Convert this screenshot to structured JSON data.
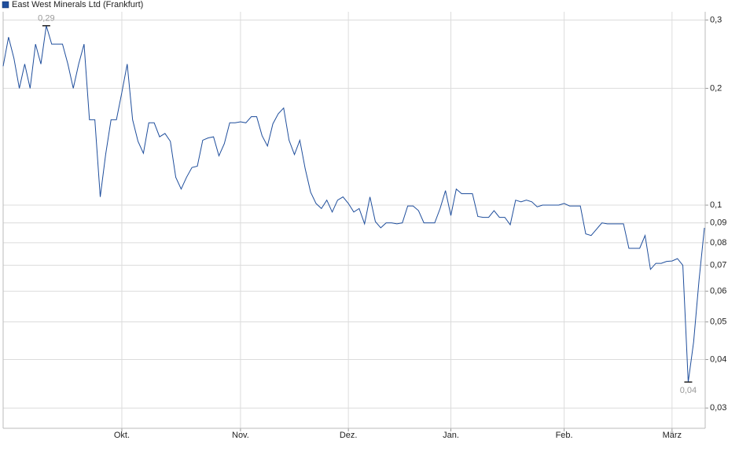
{
  "chart_data": {
    "type": "line",
    "log_scale": true,
    "grid": true,
    "legend": "top-left",
    "ylim": [
      0.0266,
      0.315
    ],
    "yticks": [
      {
        "value": 0.3,
        "label": "0,3"
      },
      {
        "value": 0.2,
        "label": "0,2"
      },
      {
        "value": 0.1,
        "label": "0,1"
      },
      {
        "value": 0.09,
        "label": "0,09"
      },
      {
        "value": 0.08,
        "label": "0,08"
      },
      {
        "value": 0.07,
        "label": "0,07"
      },
      {
        "value": 0.06,
        "label": "0,06"
      },
      {
        "value": 0.05,
        "label": "0,05"
      },
      {
        "value": 0.04,
        "label": "0,04"
      },
      {
        "value": 0.03,
        "label": "0,03"
      }
    ],
    "xlim": [
      0,
      130
    ],
    "xticks": [
      {
        "value": 22,
        "label": "Okt."
      },
      {
        "value": 44,
        "label": "Nov."
      },
      {
        "value": 64,
        "label": "Dez."
      },
      {
        "value": 83,
        "label": "Jan."
      },
      {
        "value": 104,
        "label": "Feb."
      },
      {
        "value": 124,
        "label": "März"
      }
    ],
    "series": [
      {
        "name": "East West Minerals Ltd (Frankfurt)",
        "color": "#1f4e9c",
        "values": [
          0.228,
          0.271,
          0.239,
          0.2,
          0.231,
          0.2,
          0.26,
          0.231,
          0.29,
          0.26,
          0.26,
          0.26,
          0.231,
          0.2,
          0.231,
          0.26,
          0.166,
          0.166,
          0.105,
          0.135,
          0.166,
          0.166,
          0.195,
          0.231,
          0.166,
          0.146,
          0.136,
          0.163,
          0.163,
          0.15,
          0.153,
          0.146,
          0.118,
          0.11,
          0.118,
          0.125,
          0.126,
          0.147,
          0.149,
          0.15,
          0.134,
          0.144,
          0.163,
          0.163,
          0.164,
          0.163,
          0.169,
          0.169,
          0.151,
          0.142,
          0.162,
          0.172,
          0.178,
          0.147,
          0.135,
          0.147,
          0.124,
          0.108,
          0.101,
          0.098,
          0.103,
          0.096,
          0.103,
          0.105,
          0.101,
          0.096,
          0.098,
          0.0895,
          0.105,
          0.0907,
          0.0874,
          0.09,
          0.09,
          0.0895,
          0.09,
          0.0995,
          0.0995,
          0.0968,
          0.09,
          0.09,
          0.09,
          0.098,
          0.109,
          0.094,
          0.11,
          0.107,
          0.107,
          0.107,
          0.0935,
          0.093,
          0.093,
          0.0968,
          0.093,
          0.093,
          0.089,
          0.103,
          0.102,
          0.103,
          0.102,
          0.099,
          0.1,
          0.1,
          0.1,
          0.1,
          0.101,
          0.0995,
          0.0995,
          0.0995,
          0.0843,
          0.0835,
          0.0867,
          0.09,
          0.0895,
          0.0895,
          0.0895,
          0.0895,
          0.0774,
          0.0774,
          0.0774,
          0.0835,
          0.0683,
          0.0708,
          0.0708,
          0.0716,
          0.0718,
          0.0728,
          0.07,
          0.035,
          0.0444,
          0.064,
          0.0874
        ],
        "value_labels": [
          null,
          null,
          null,
          null,
          null,
          null,
          null,
          null,
          "0,29",
          null,
          null,
          null,
          null,
          null,
          null,
          null,
          null,
          null,
          null,
          null,
          null,
          null,
          null,
          null,
          null,
          null,
          null,
          null,
          null,
          null,
          null,
          null,
          null,
          null,
          null,
          null,
          null,
          null,
          null,
          null,
          null,
          null,
          null,
          null,
          null,
          null,
          null,
          null,
          null,
          null,
          null,
          null,
          null,
          null,
          null,
          null,
          null,
          null,
          null,
          null,
          null,
          null,
          null,
          null,
          null,
          null,
          null,
          null,
          null,
          null,
          null,
          null,
          null,
          null,
          null,
          null,
          null,
          null,
          null,
          null,
          null,
          null,
          null,
          null,
          null,
          null,
          null,
          null,
          null,
          null,
          null,
          null,
          null,
          null,
          null,
          null,
          null,
          null,
          null,
          null,
          null,
          null,
          null,
          null,
          null,
          null,
          null,
          null,
          null,
          null,
          null,
          null,
          null,
          null,
          null,
          null,
          null,
          null,
          null,
          null,
          null,
          null,
          null,
          null,
          null,
          null,
          null,
          "0,04",
          null,
          null,
          null
        ]
      }
    ]
  }
}
